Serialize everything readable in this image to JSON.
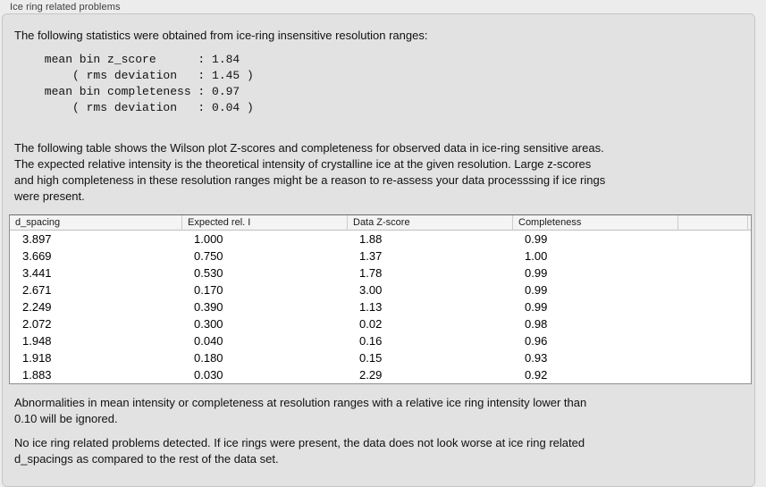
{
  "panel": {
    "title": "Ice ring related problems"
  },
  "stats": {
    "intro": "The following statistics were obtained from ice-ring insensitive resolution ranges:",
    "block": " mean bin z_score      : 1.84\n     ( rms deviation   : 1.45 )\n mean bin completeness : 0.97\n     ( rms deviation   : 0.04 )",
    "mean_bin_z_score": "1.84",
    "z_score_rms_deviation": "1.45",
    "mean_bin_completeness": "0.97",
    "completeness_rms_deviation": "0.04"
  },
  "description": "The following table shows the Wilson plot Z-scores and completeness for observed data in ice-ring sensitive areas.\nThe expected relative intensity is the theoretical intensity of crystalline ice at the given resolution. Large z-scores\nand high completeness in these resolution ranges might be a reason to re-assess your data processsing if ice rings\nwere present.",
  "table": {
    "columns": [
      "d_spacing",
      "Expected rel. I",
      "Data Z-score",
      "Completeness",
      "",
      ""
    ],
    "rows": [
      [
        "3.897",
        "1.000",
        "1.88",
        "0.99"
      ],
      [
        "3.669",
        "0.750",
        "1.37",
        "1.00"
      ],
      [
        "3.441",
        "0.530",
        "1.78",
        "0.99"
      ],
      [
        "2.671",
        "0.170",
        "3.00",
        "0.99"
      ],
      [
        "2.249",
        "0.390",
        "1.13",
        "0.99"
      ],
      [
        "2.072",
        "0.300",
        "0.02",
        "0.98"
      ],
      [
        "1.948",
        "0.040",
        "0.16",
        "0.96"
      ],
      [
        "1.918",
        "0.180",
        "0.15",
        "0.93"
      ],
      [
        "1.883",
        "0.030",
        "2.29",
        "0.92"
      ]
    ]
  },
  "notes": {
    "ignore_note": "Abnormalities in mean intensity or completeness at resolution ranges with a relative ice ring intensity lower than\n0.10 will be ignored.",
    "conclusion": "No ice ring related problems detected. If ice rings were present, the data does not look worse at ice ring related\nd_spacings as compared to the rest of the data set."
  },
  "colors": {
    "page_bg": "#ececec",
    "panel_bg": "#e2e2e2",
    "panel_border": "#c6c6c6",
    "table_bg": "#ffffff",
    "table_border": "#8f8f8f",
    "table_header_bg": "#f4f4f4",
    "table_header_separator": "#cdcdcd",
    "text": "#111111",
    "title_text": "#3d3d3d"
  }
}
